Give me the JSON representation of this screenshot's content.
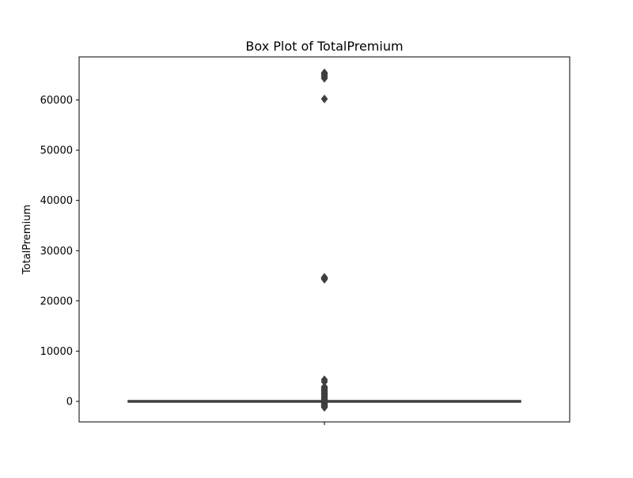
{
  "chart_data": {
    "type": "box",
    "title": "Box Plot of TotalPremium",
    "xlabel": "",
    "ylabel": "TotalPremium",
    "ylim": [
      -4000,
      68500
    ],
    "yticks": [
      0,
      10000,
      20000,
      30000,
      40000,
      50000,
      60000
    ],
    "ytick_labels": [
      "0",
      "10000",
      "20000",
      "30000",
      "40000",
      "50000",
      "60000"
    ],
    "box": {
      "q1": 0,
      "median": 0,
      "q3": 0,
      "whisker_low": 0,
      "whisker_high": 0
    },
    "outliers": [
      65400,
      65200,
      64900,
      64600,
      64300,
      60200,
      24700,
      24600,
      24500,
      24400,
      24300,
      4300,
      3900,
      2900,
      2700,
      2500,
      2300,
      2100,
      1900,
      1700,
      1500,
      1300,
      1100,
      900,
      700,
      500,
      350,
      200,
      -150,
      -300,
      -450,
      -600,
      -750,
      -900,
      -1050,
      -1200
    ],
    "colors": {
      "box_line": "#3f3f3f",
      "outlier": "#3f3f3f",
      "axes": "#000000"
    },
    "grid": false
  }
}
